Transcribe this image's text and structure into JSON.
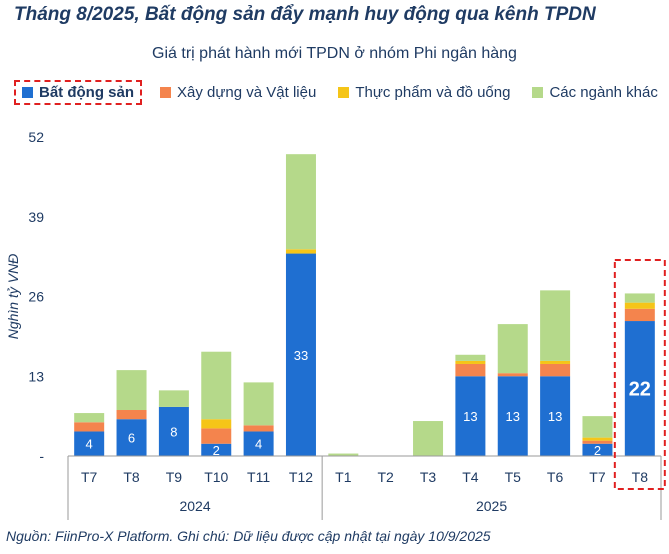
{
  "title": "Tháng 8/2025, Bất động sản đẩy mạnh huy động qua kênh TPDN",
  "footer": "Nguồn: FiinPro-X Platform. Ghi chú: Dữ liệu được cập nhật tại ngày 10/9/2025",
  "colors": {
    "bds": "#1f6fd1",
    "xaydung": "#f4844d",
    "thucpham": "#f5c518",
    "khac": "#b5d98a",
    "highlight": "#e02020",
    "text": "#1f3b63"
  },
  "chart_data": {
    "type": "bar",
    "stacked": true,
    "title": "Giá trị phát hành mới TPDN ở nhóm Phi ngân hàng",
    "ylabel": "Nghìn tỷ VNĐ",
    "ylim": [
      0,
      52
    ],
    "yticks": [
      "-",
      "13",
      "26",
      "39",
      "52"
    ],
    "categories": [
      "T7",
      "T8",
      "T9",
      "T10",
      "T11",
      "T12",
      "T1",
      "T2",
      "T3",
      "T4",
      "T5",
      "T6",
      "T7",
      "T8"
    ],
    "groups": [
      {
        "label": "2024",
        "count": 6
      },
      {
        "label": "2025",
        "count": 8
      }
    ],
    "series": [
      {
        "name": "Bất động sản",
        "color_key": "bds",
        "values": [
          4,
          6,
          8,
          2,
          4,
          33,
          0,
          0,
          0,
          13,
          13,
          13,
          2,
          22
        ],
        "data_labels": [
          "4",
          "6",
          "8",
          "2",
          "4",
          "33",
          "",
          "",
          "",
          "13",
          "13",
          "13",
          "2",
          "22"
        ]
      },
      {
        "name": "Xây dựng và Vật liệu",
        "color_key": "xaydung",
        "values": [
          1.5,
          1.5,
          0,
          2.5,
          1,
          0,
          0,
          0,
          0,
          2,
          0.5,
          2,
          0.5,
          2
        ]
      },
      {
        "name": "Thực phẩm và đồ uống",
        "color_key": "thucpham",
        "values": [
          0,
          0,
          0,
          1.5,
          0,
          0.7,
          0,
          0,
          0,
          0.5,
          0,
          0.5,
          0.5,
          1
        ]
      },
      {
        "name": "Các ngành khác",
        "color_key": "khac",
        "values": [
          1.5,
          6.5,
          2.7,
          11,
          7,
          15.5,
          0.4,
          0,
          5.7,
          1,
          8,
          11.5,
          3.5,
          1.5
        ]
      }
    ],
    "highlight_index": 13
  }
}
